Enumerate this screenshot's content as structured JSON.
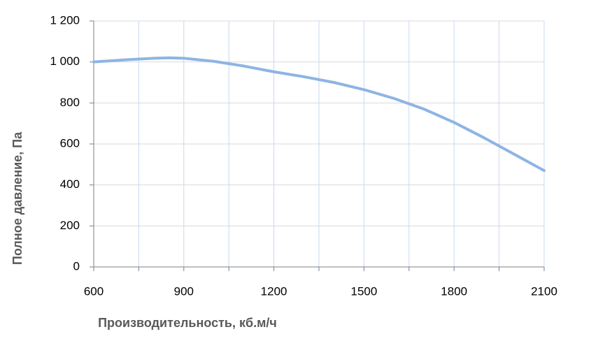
{
  "chart_data": {
    "type": "line",
    "x_label": "Производительность, кб.м/ч",
    "y_label": "Полное  давление, Па",
    "x": [
      600,
      700,
      800,
      850,
      900,
      1000,
      1100,
      1200,
      1300,
      1400,
      1500,
      1600,
      1700,
      1800,
      1900,
      2000,
      2100
    ],
    "series": [
      {
        "color": "#8eb4e3",
        "values": [
          1000,
          1010,
          1018,
          1020,
          1018,
          1003,
          980,
          952,
          928,
          900,
          865,
          822,
          770,
          705,
          630,
          550,
          470
        ]
      }
    ],
    "xlim": [
      600,
      2100
    ],
    "xticks": [
      600,
      900,
      1200,
      1500,
      1800,
      2100
    ],
    "minor_xticks": [
      750,
      1050,
      1350,
      1650,
      1950
    ],
    "ylim": [
      0,
      1200
    ],
    "yticks": [
      0,
      200,
      400,
      600,
      800,
      {
        "value": 1000,
        "label": "1 000"
      },
      {
        "value": 1200,
        "label": "1 200"
      }
    ],
    "grid": true
  }
}
